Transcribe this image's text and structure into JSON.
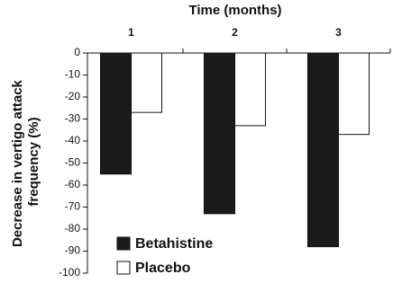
{
  "chart_data": {
    "type": "bar",
    "title": "Time (months)",
    "y_label": [
      "Decrease in vertigo attack",
      "frequency (%)"
    ],
    "categories": [
      "1",
      "2",
      "3"
    ],
    "series": [
      {
        "name": "Betahistine",
        "color": "#1a1a1a",
        "values": [
          -55,
          -73,
          -88
        ]
      },
      {
        "name": "Placebo",
        "color": "#ffffff",
        "values": [
          -27,
          -33,
          -37
        ]
      }
    ],
    "ylim": [
      -100,
      0
    ],
    "yticks": [
      0,
      -10,
      -20,
      -30,
      -40,
      -50,
      -60,
      -70,
      -80,
      -90,
      -100
    ],
    "x_axis_position": "top",
    "legend": "bottom-left"
  }
}
